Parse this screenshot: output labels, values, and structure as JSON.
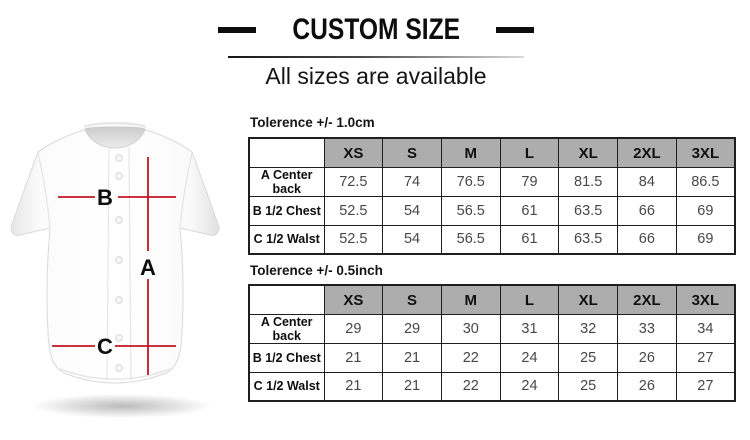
{
  "header": {
    "title": "CUSTOM SIZE",
    "subtitle": "All sizes are available"
  },
  "figure": {
    "labels": {
      "a": "A",
      "b": "B",
      "c": "C"
    }
  },
  "tables": [
    {
      "tolerance_label": "Tolerence +/- 1.0cm",
      "columns": [
        "XS",
        "S",
        "M",
        "L",
        "XL",
        "2XL",
        "3XL"
      ],
      "rows": [
        {
          "label": "A Center back",
          "values": [
            "72.5",
            "74",
            "76.5",
            "79",
            "81.5",
            "84",
            "86.5"
          ]
        },
        {
          "label": "B 1/2 Chest",
          "values": [
            "52.5",
            "54",
            "56.5",
            "61",
            "63.5",
            "66",
            "69"
          ]
        },
        {
          "label": "C 1/2 Walst",
          "values": [
            "52.5",
            "54",
            "56.5",
            "61",
            "63.5",
            "66",
            "69"
          ]
        }
      ]
    },
    {
      "tolerance_label": "Tolerence +/- 0.5inch",
      "columns": [
        "XS",
        "S",
        "M",
        "L",
        "XL",
        "2XL",
        "3XL"
      ],
      "rows": [
        {
          "label": "A Center back",
          "values": [
            "29",
            "29",
            "30",
            "31",
            "32",
            "33",
            "34"
          ]
        },
        {
          "label": "B 1/2 Chest",
          "values": [
            "21",
            "21",
            "22",
            "24",
            "25",
            "26",
            "27"
          ]
        },
        {
          "label": "C 1/2 Walst",
          "values": [
            "21",
            "21",
            "22",
            "24",
            "25",
            "26",
            "27"
          ]
        }
      ]
    }
  ],
  "colors": {
    "accent_red": "#c11622",
    "title_black": "#0d0d0d",
    "table_header_bg": "#adadad",
    "table_border": "#1f1f1f",
    "value_text": "#474747"
  }
}
